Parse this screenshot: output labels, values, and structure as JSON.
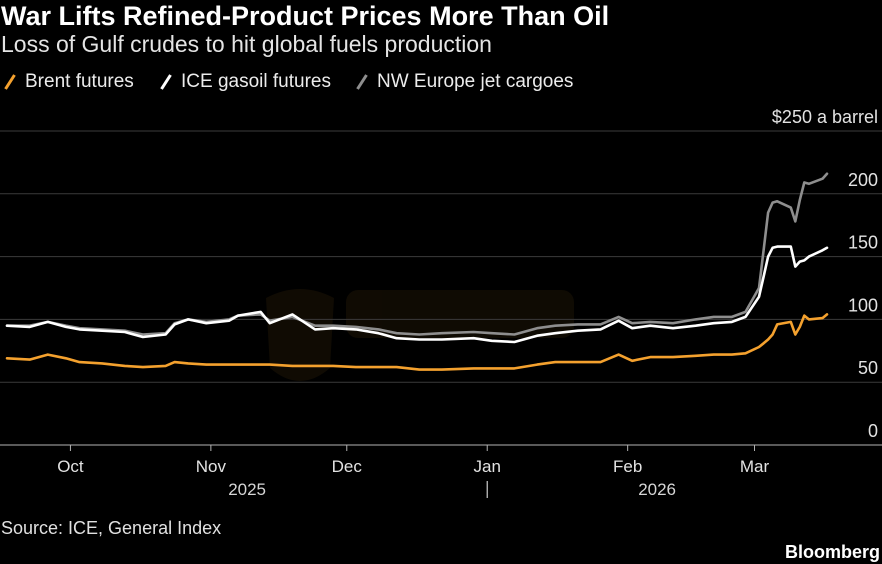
{
  "colors": {
    "background": "#000000",
    "title": "#ffffff",
    "text": "#e6e6e6",
    "gridline": "#3b3b3b",
    "baseline": "#b3b3b3",
    "watermark": "#d9962e"
  },
  "source": "Source: ICE, General Index",
  "brand": "Bloomberg",
  "chart_data": {
    "type": "line",
    "title": "War Lifts Refined-Product Prices More Than Oil",
    "subtitle": "Loss of Gulf crudes to hit global fuels production",
    "ylim": [
      0,
      250
    ],
    "grid": true,
    "yticks": [
      {
        "value": 0,
        "label": "0"
      },
      {
        "value": 50,
        "label": "50"
      },
      {
        "value": 100,
        "label": "100"
      },
      {
        "value": 150,
        "label": "150"
      },
      {
        "value": 200,
        "label": "200"
      },
      {
        "value": 250,
        "label": "$250 a barrel"
      }
    ],
    "xlim": [
      "2025-09-17",
      "2026-03-17"
    ],
    "xticks": [
      {
        "date": "2025-10-01",
        "label": "Oct"
      },
      {
        "date": "2025-11-01",
        "label": "Nov"
      },
      {
        "date": "2025-12-01",
        "label": "Dec"
      },
      {
        "date": "2026-01-01",
        "label": "Jan"
      },
      {
        "date": "2026-02-01",
        "label": "Feb"
      },
      {
        "date": "2026-03-01",
        "label": "Mar"
      }
    ],
    "year_labels": [
      {
        "label": "2025",
        "from": "2025-09-17",
        "to": "2026-01-01"
      },
      {
        "label": "2026",
        "from": "2026-01-01",
        "to": "2026-03-17"
      }
    ],
    "x": [
      "2025-09-17",
      "2025-09-22",
      "2025-09-26",
      "2025-09-30",
      "2025-10-03",
      "2025-10-08",
      "2025-10-13",
      "2025-10-17",
      "2025-10-22",
      "2025-10-24",
      "2025-10-27",
      "2025-10-31",
      "2025-11-05",
      "2025-11-07",
      "2025-11-12",
      "2025-11-14",
      "2025-11-19",
      "2025-11-24",
      "2025-11-28",
      "2025-12-03",
      "2025-12-08",
      "2025-12-12",
      "2025-12-17",
      "2025-12-22",
      "2025-12-29",
      "2026-01-02",
      "2026-01-07",
      "2026-01-12",
      "2026-01-16",
      "2026-01-21",
      "2026-01-26",
      "2026-01-30",
      "2026-02-02",
      "2026-02-06",
      "2026-02-11",
      "2026-02-16",
      "2026-02-20",
      "2026-02-24",
      "2026-02-27",
      "2026-03-02",
      "2026-03-03",
      "2026-03-04",
      "2026-03-05",
      "2026-03-06",
      "2026-03-09",
      "2026-03-10",
      "2026-03-11",
      "2026-03-12",
      "2026-03-13",
      "2026-03-16",
      "2026-03-17"
    ],
    "series": [
      {
        "name": "Brent futures",
        "color": "#f4a12e",
        "icon": "slash-icon",
        "values": [
          69,
          68,
          72,
          69,
          66,
          65,
          63,
          62,
          63,
          66,
          65,
          64,
          64,
          64,
          64,
          64,
          63,
          63,
          63,
          62,
          62,
          62,
          60,
          60,
          61,
          61,
          61,
          64,
          66,
          66,
          66,
          72,
          67,
          70,
          70,
          71,
          72,
          72,
          73,
          78,
          81,
          84,
          88,
          96,
          98,
          88,
          94,
          103,
          100,
          101,
          104
        ]
      },
      {
        "name": "ICE gasoil futures",
        "color": "#ffffff",
        "icon": "slash-icon",
        "values": [
          95,
          94,
          98,
          94,
          92,
          91,
          90,
          86,
          88,
          96,
          100,
          97,
          99,
          103,
          106,
          97,
          104,
          92,
          93,
          92,
          89,
          85,
          84,
          84,
          85,
          83,
          82,
          87,
          89,
          91,
          92,
          99,
          93,
          95,
          93,
          95,
          97,
          98,
          102,
          118,
          134,
          150,
          157,
          158,
          158,
          142,
          146,
          147,
          150,
          155,
          157
        ]
      },
      {
        "name": "NW Europe jet cargoes",
        "color": "#8e8e8e",
        "icon": "slash-icon",
        "values": [
          95,
          95,
          98,
          95,
          93,
          92,
          91,
          88,
          89,
          97,
          100,
          98,
          100,
          103,
          104,
          99,
          102,
          95,
          95,
          94,
          92,
          89,
          88,
          89,
          90,
          89,
          88,
          93,
          95,
          96,
          96,
          102,
          97,
          98,
          97,
          100,
          102,
          102,
          106,
          125,
          155,
          185,
          193,
          194,
          189,
          178,
          195,
          209,
          208,
          212,
          216
        ]
      }
    ]
  }
}
